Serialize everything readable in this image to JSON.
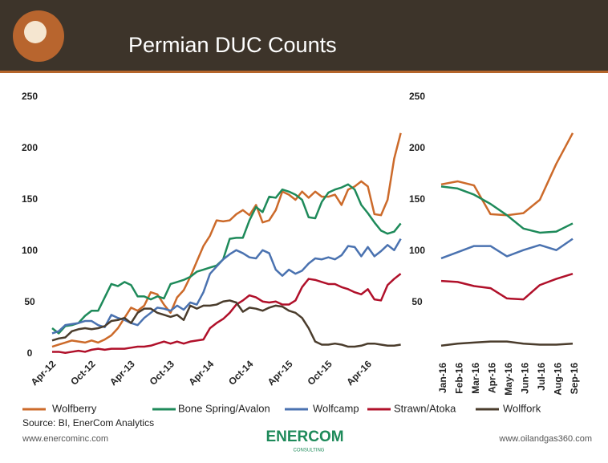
{
  "header": {
    "title": "Permian DUC Counts"
  },
  "chart_data": [
    {
      "type": "line",
      "categories": [
        "Apr-12",
        null,
        null,
        null,
        null,
        null,
        "Oct-12",
        null,
        null,
        null,
        null,
        null,
        "Apr-13",
        null,
        null,
        null,
        null,
        null,
        "Oct-13",
        null,
        null,
        null,
        null,
        null,
        "Apr-14",
        null,
        null,
        null,
        null,
        null,
        "Oct-14",
        null,
        null,
        null,
        null,
        null,
        "Apr-15",
        null,
        null,
        null,
        null,
        null,
        "Oct-15",
        null,
        null,
        null,
        null,
        null,
        "Apr-16",
        null,
        null,
        null,
        null,
        null
      ],
      "ylim": [
        0,
        250
      ],
      "yticks": [
        0,
        50,
        100,
        150,
        200,
        250
      ],
      "series": [
        {
          "name": "Wolfberry",
          "color": "#cc6a2a",
          "values": [
            7,
            9,
            11,
            13,
            12,
            11,
            13,
            11,
            14,
            18,
            25,
            35,
            45,
            42,
            47,
            60,
            58,
            48,
            40,
            55,
            62,
            75,
            90,
            105,
            115,
            130,
            129,
            130,
            136,
            140,
            135,
            145,
            128,
            130,
            140,
            158,
            155,
            150,
            158,
            152,
            158,
            153,
            153,
            155,
            145,
            160,
            163,
            168,
            163,
            136,
            135,
            150,
            190,
            215
          ]
        },
        {
          "name": "Bone Spring/Avalon",
          "color": "#1e8a5a",
          "values": [
            25,
            20,
            27,
            28,
            30,
            37,
            42,
            42,
            55,
            68,
            66,
            70,
            67,
            56,
            56,
            53,
            56,
            54,
            68,
            70,
            72,
            75,
            80,
            82,
            84,
            86,
            92,
            112,
            113,
            113,
            130,
            143,
            138,
            153,
            152,
            160,
            158,
            155,
            150,
            133,
            132,
            148,
            157,
            160,
            162,
            165,
            160,
            145,
            137,
            128,
            120,
            117,
            119,
            127
          ]
        },
        {
          "name": "Wolfcamp",
          "color": "#4a72b0",
          "values": [
            20,
            22,
            28,
            29,
            30,
            32,
            32,
            28,
            26,
            38,
            35,
            33,
            30,
            28,
            35,
            40,
            45,
            44,
            42,
            47,
            43,
            50,
            48,
            60,
            78,
            85,
            92,
            97,
            101,
            98,
            94,
            93,
            101,
            98,
            82,
            76,
            82,
            78,
            81,
            88,
            93,
            92,
            94,
            92,
            96,
            105,
            104,
            95,
            104,
            95,
            100,
            106,
            101,
            112
          ]
        },
        {
          "name": "Strawn/Atoka",
          "color": "#b0102a",
          "values": [
            2,
            2,
            1,
            2,
            3,
            2,
            4,
            5,
            4,
            5,
            5,
            5,
            6,
            7,
            7,
            8,
            10,
            12,
            10,
            12,
            10,
            12,
            13,
            14,
            25,
            30,
            34,
            40,
            48,
            52,
            57,
            55,
            51,
            50,
            51,
            48,
            48,
            52,
            65,
            73,
            72,
            70,
            68,
            68,
            65,
            63,
            60,
            58,
            63,
            53,
            52,
            67,
            73,
            78
          ]
        },
        {
          "name": "Wolffork",
          "color": "#4a3c2c",
          "values": [
            13,
            15,
            16,
            22,
            24,
            25,
            24,
            25,
            27,
            32,
            33,
            35,
            30,
            40,
            44,
            44,
            40,
            38,
            36,
            38,
            33,
            47,
            44,
            47,
            47,
            48,
            51,
            52,
            50,
            41,
            45,
            44,
            42,
            45,
            47,
            46,
            42,
            40,
            35,
            25,
            12,
            9,
            9,
            10,
            9,
            7,
            7,
            8,
            10,
            10,
            9,
            8,
            8,
            9
          ]
        }
      ]
    },
    {
      "type": "line",
      "categories": [
        "Jan-16",
        "Feb-16",
        "Mar-16",
        "Apr-16",
        "May-16",
        "Jun-16",
        "Jul-16",
        "Aug-16",
        "Sep-16"
      ],
      "ylim": [
        0,
        250
      ],
      "yticks": [
        50,
        100,
        150,
        200,
        250
      ],
      "series": [
        {
          "color": "#cc6a2a",
          "values": [
            165,
            168,
            164,
            136,
            135,
            137,
            150,
            185,
            215
          ]
        },
        {
          "color": "#1e8a5a",
          "values": [
            163,
            161,
            155,
            146,
            135,
            122,
            118,
            119,
            127
          ]
        },
        {
          "color": "#4a72b0",
          "values": [
            93,
            99,
            105,
            105,
            95,
            101,
            106,
            101,
            112
          ]
        },
        {
          "color": "#b0102a",
          "values": [
            71,
            70,
            66,
            64,
            54,
            53,
            67,
            73,
            78
          ]
        },
        {
          "color": "#4a3c2c",
          "values": [
            8,
            10,
            11,
            12,
            12,
            10,
            9,
            9,
            10
          ]
        }
      ]
    }
  ],
  "footer": {
    "source": "Source: BI, EnerCom Analytics",
    "left_url": "www.enercominc.com",
    "right_url": "www.oilandgas360.com",
    "logo": "ENERCOM",
    "logo_sub": "CONSULTING"
  }
}
